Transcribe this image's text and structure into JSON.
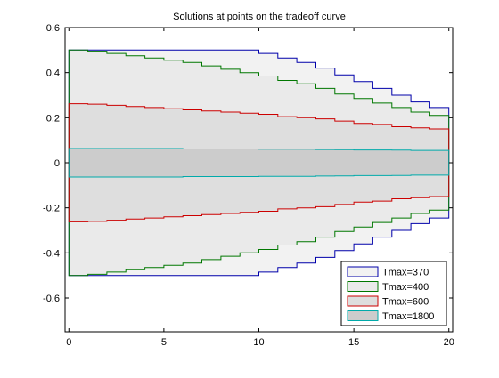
{
  "chart_data": {
    "type": "area",
    "title": "Solutions at points on the tradeoff curve",
    "xlabel": "",
    "ylabel": "",
    "xlim": [
      -0.2,
      20.2
    ],
    "ylim": [
      -0.75,
      0.6
    ],
    "xticks": [
      0,
      5,
      10,
      15,
      20
    ],
    "yticks": [
      -0.6,
      -0.4,
      -0.2,
      0,
      0.2,
      0.4,
      0.6
    ],
    "ytick_labels": [
      "-0.6",
      "-0.4",
      "-0.2",
      "0",
      "0.2",
      "0.4",
      "0.6"
    ],
    "grid": false,
    "legend_position": "bottom-right",
    "x": [
      0,
      1,
      2,
      3,
      4,
      5,
      6,
      7,
      8,
      9,
      10,
      11,
      12,
      13,
      14,
      15,
      16,
      17,
      18,
      19,
      20
    ],
    "step": "post",
    "symmetric": true,
    "series": [
      {
        "name": "Tmax=370",
        "color": "#0000aa",
        "fill": "#f2f2f2",
        "values": [
          0.5,
          0.5,
          0.5,
          0.5,
          0.5,
          0.5,
          0.5,
          0.5,
          0.5,
          0.5,
          0.485,
          0.465,
          0.445,
          0.42,
          0.39,
          0.36,
          0.33,
          0.3,
          0.27,
          0.245,
          0.225
        ]
      },
      {
        "name": "Tmax=400",
        "color": "#007700",
        "fill": "#eaeaea",
        "values": [
          0.5,
          0.495,
          0.485,
          0.475,
          0.465,
          0.455,
          0.445,
          0.43,
          0.415,
          0.4,
          0.385,
          0.365,
          0.35,
          0.33,
          0.305,
          0.285,
          0.265,
          0.245,
          0.225,
          0.21,
          0.2
        ]
      },
      {
        "name": "Tmax=600",
        "color": "#cc0000",
        "fill": "#dedede",
        "values": [
          0.262,
          0.26,
          0.255,
          0.25,
          0.245,
          0.24,
          0.235,
          0.23,
          0.225,
          0.22,
          0.215,
          0.205,
          0.2,
          0.195,
          0.185,
          0.175,
          0.17,
          0.16,
          0.155,
          0.15,
          0.145
        ]
      },
      {
        "name": "Tmax=1800",
        "color": "#00aaaa",
        "fill": "#cccccc",
        "values": [
          0.063,
          0.063,
          0.063,
          0.063,
          0.063,
          0.063,
          0.061,
          0.061,
          0.061,
          0.061,
          0.06,
          0.06,
          0.06,
          0.059,
          0.058,
          0.057,
          0.057,
          0.056,
          0.055,
          0.055,
          0.055
        ]
      }
    ]
  }
}
